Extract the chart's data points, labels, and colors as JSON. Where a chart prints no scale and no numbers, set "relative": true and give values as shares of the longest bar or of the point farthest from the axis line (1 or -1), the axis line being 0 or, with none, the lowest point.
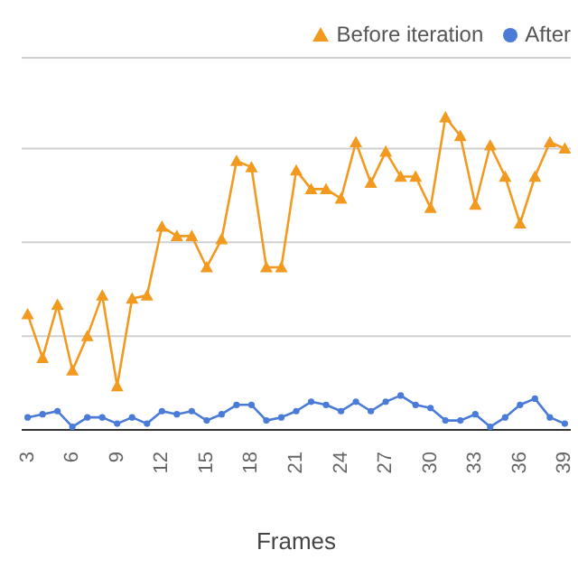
{
  "chart_data": {
    "type": "line",
    "xlabel": "Frames",
    "relative": true,
    "grid": "y",
    "legend": "top right",
    "line_style": "solid",
    "x": [
      3,
      4,
      5,
      6,
      7,
      8,
      9,
      10,
      11,
      12,
      13,
      14,
      15,
      16,
      17,
      18,
      19,
      20,
      21,
      22,
      23,
      24,
      25,
      26,
      27,
      28,
      29,
      30,
      31,
      32,
      33,
      34,
      35,
      36,
      37,
      38,
      39
    ],
    "xlim": [
      2.6,
      39.4
    ],
    "xticks": [
      3,
      6,
      9,
      12,
      15,
      18,
      21,
      24,
      27,
      30,
      33,
      36,
      39
    ],
    "series": [
      {
        "name": "Before iteration",
        "color": "#f29a1f",
        "marker": "triangle",
        "values": [
          0.37,
          0.23,
          0.4,
          0.19,
          0.3,
          0.43,
          0.14,
          0.42,
          0.43,
          0.65,
          0.62,
          0.62,
          0.52,
          0.61,
          0.86,
          0.84,
          0.52,
          0.52,
          0.83,
          0.77,
          0.77,
          0.74,
          0.92,
          0.79,
          0.89,
          0.81,
          0.81,
          0.71,
          1,
          0.94,
          0.72,
          0.91,
          0.81,
          0.66,
          0.81,
          0.92,
          0.9
        ]
      },
      {
        "name": "After",
        "color": "#4a7bd8",
        "marker": "circle",
        "values": [
          0.04,
          0.05,
          0.06,
          0.01,
          0.04,
          0.04,
          0.02,
          0.04,
          0.02,
          0.06,
          0.05,
          0.06,
          0.03,
          0.05,
          0.08,
          0.08,
          0.03,
          0.04,
          0.06,
          0.09,
          0.08,
          0.06,
          0.09,
          0.06,
          0.09,
          0.11,
          0.08,
          0.07,
          0.03,
          0.03,
          0.05,
          0.01,
          0.04,
          0.08,
          0.1,
          0.04,
          0.02
        ]
      }
    ]
  }
}
